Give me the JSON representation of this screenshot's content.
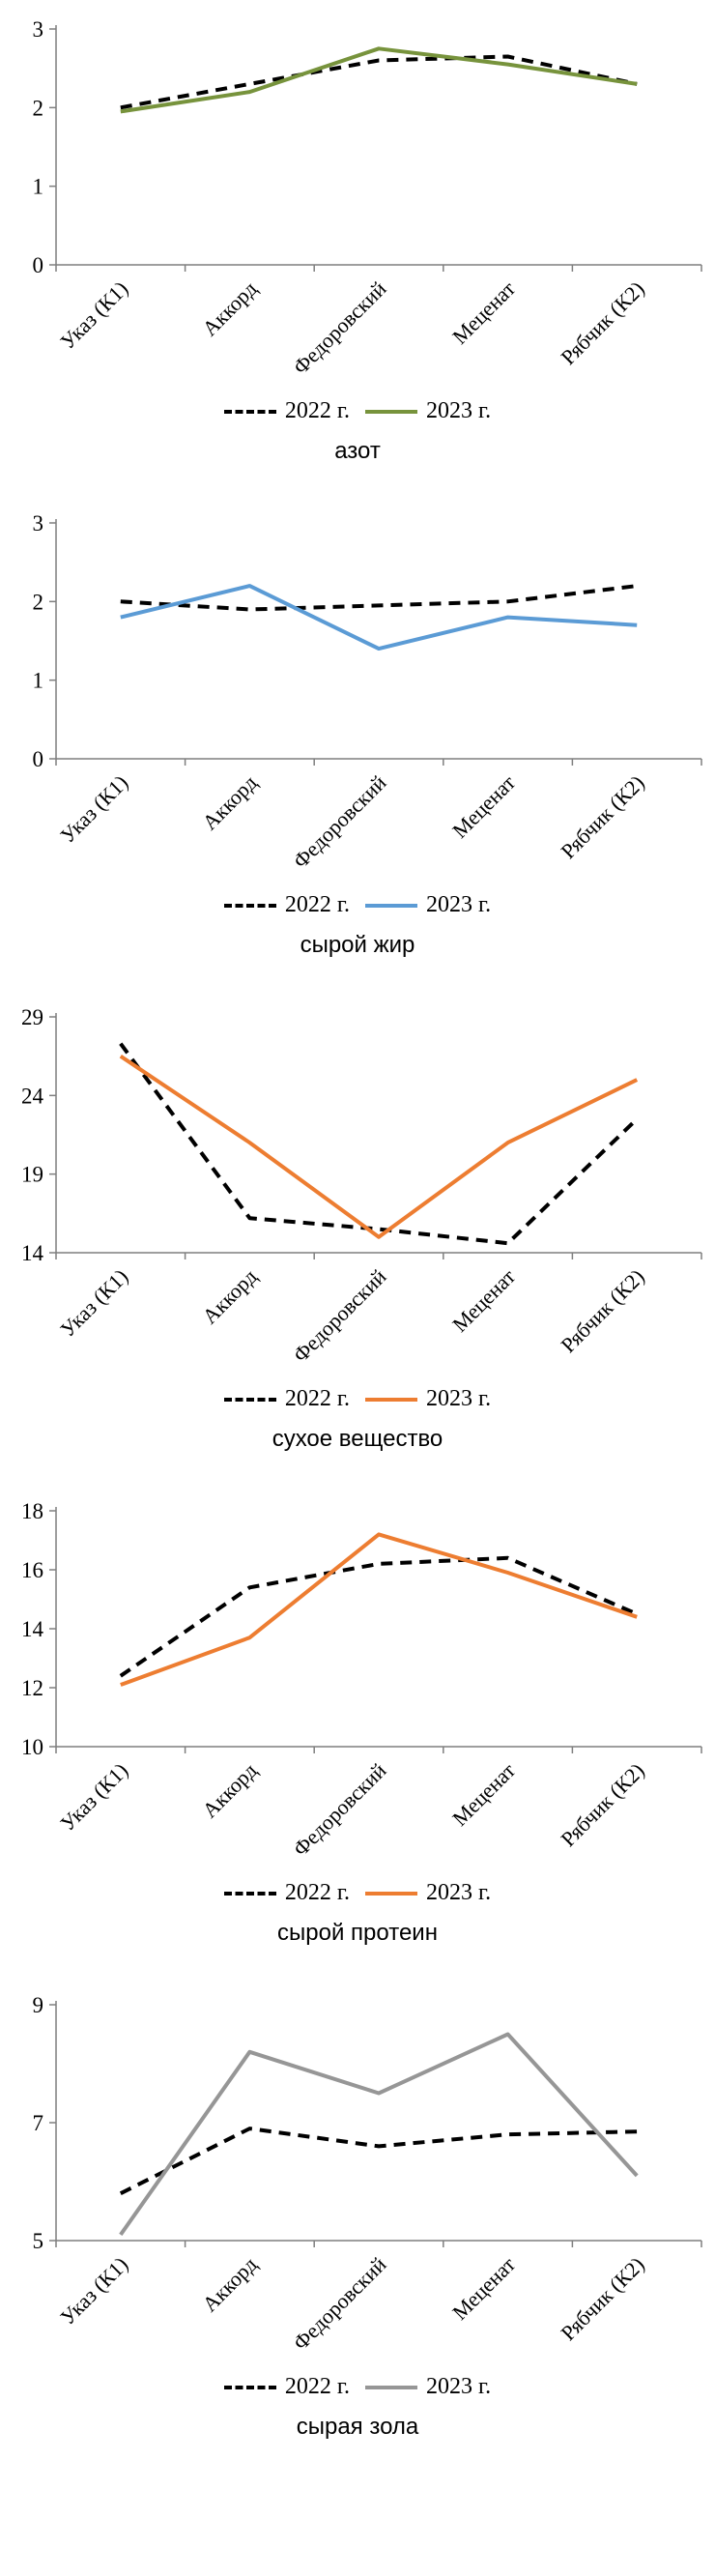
{
  "page": {
    "background": "#ffffff"
  },
  "chart_data": [
    {
      "type": "line",
      "title": "азот",
      "categories": [
        "Указ (К1)",
        "Аккорд",
        "Федоровский",
        "Меценат",
        "Рябчик (К2)"
      ],
      "ylim": [
        0,
        3
      ],
      "y_ticks": [
        0,
        1,
        2,
        3
      ],
      "grid": false,
      "legend_position": "bottom",
      "series": [
        {
          "name": "2022 г.",
          "style": "dashed",
          "color": "#000000",
          "values": [
            2.0,
            2.3,
            2.6,
            2.65,
            2.3
          ]
        },
        {
          "name": "2023 г.",
          "style": "solid",
          "color": "#77933C",
          "values": [
            1.95,
            2.2,
            2.75,
            2.55,
            2.3
          ]
        }
      ]
    },
    {
      "type": "line",
      "title": "сырой жир",
      "categories": [
        "Указ (К1)",
        "Аккорд",
        "Федоровский",
        "Меценат",
        "Рябчик (К2)"
      ],
      "ylim": [
        0,
        3
      ],
      "y_ticks": [
        0,
        1,
        2,
        3
      ],
      "grid": false,
      "legend_position": "bottom",
      "series": [
        {
          "name": "2022 г.",
          "style": "dashed",
          "color": "#000000",
          "values": [
            2.0,
            1.9,
            1.95,
            2.0,
            2.2
          ]
        },
        {
          "name": "2023 г.",
          "style": "solid",
          "color": "#5B9BD5",
          "values": [
            1.8,
            2.2,
            1.4,
            1.8,
            1.7
          ]
        }
      ]
    },
    {
      "type": "line",
      "title": "сухое вещество",
      "categories": [
        "Указ (К1)",
        "Аккорд",
        "Федоровский",
        "Меценат",
        "Рябчик (К2)"
      ],
      "ylim": [
        14,
        29
      ],
      "y_ticks": [
        14,
        19,
        24,
        29
      ],
      "grid": false,
      "legend_position": "bottom",
      "series": [
        {
          "name": "2022 г.",
          "style": "dashed",
          "color": "#000000",
          "values": [
            27.3,
            16.2,
            15.5,
            14.6,
            22.5
          ]
        },
        {
          "name": "2023 г.",
          "style": "solid",
          "color": "#ED7D31",
          "values": [
            26.5,
            21.0,
            15.0,
            21.0,
            25.0
          ]
        }
      ]
    },
    {
      "type": "line",
      "title": "сырой протеин",
      "categories": [
        "Указ (К1)",
        "Аккорд",
        "Федоровский",
        "Меценат",
        "Рябчик (К2)"
      ],
      "ylim": [
        10,
        18
      ],
      "y_ticks": [
        10,
        12,
        14,
        16,
        18
      ],
      "grid": false,
      "legend_position": "bottom",
      "series": [
        {
          "name": "2022 г.",
          "style": "dashed",
          "color": "#000000",
          "values": [
            12.4,
            15.4,
            16.2,
            16.4,
            14.5
          ]
        },
        {
          "name": "2023 г.",
          "style": "solid",
          "color": "#ED7D31",
          "values": [
            12.1,
            13.7,
            17.2,
            15.9,
            14.4
          ]
        }
      ]
    },
    {
      "type": "line",
      "title": "сырая зола",
      "categories": [
        "Указ (К1)",
        "Аккорд",
        "Федоровский",
        "Меценат",
        "Рябчик (К2)"
      ],
      "ylim": [
        5,
        9
      ],
      "y_ticks": [
        5,
        7,
        9
      ],
      "grid": false,
      "legend_position": "bottom",
      "series": [
        {
          "name": "2022 г.",
          "style": "dashed",
          "color": "#000000",
          "values": [
            5.8,
            6.9,
            6.6,
            6.8,
            6.85
          ]
        },
        {
          "name": "2023 г.",
          "style": "solid",
          "color": "#969696",
          "values": [
            5.1,
            8.2,
            7.5,
            8.5,
            6.1
          ]
        }
      ]
    }
  ]
}
